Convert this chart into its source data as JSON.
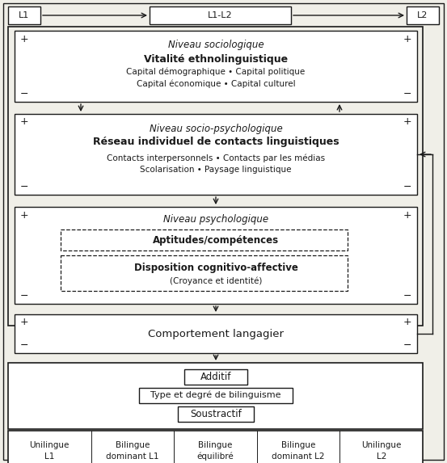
{
  "bg_color": "#f0efe8",
  "box_color": "#ffffff",
  "line_color": "#1a1a1a",
  "text_color": "#1a1a1a",
  "fig_width": 5.53,
  "fig_height": 5.73,
  "top_labels": {
    "l1": "L1",
    "l1l2": "L1-L2",
    "l2": "L2"
  },
  "box1": {
    "title_italic": "Niveau sociologique",
    "title_bold": "Vitalité ethnolinguistique",
    "subtitle": "Capital démographique • Capital politique\nCapital économique • Capital culturel"
  },
  "box2": {
    "title_italic": "Niveau socio-psychologique",
    "title_bold": "Réseau individuel de contacts linguistiques",
    "subtitle": "Contacts interpersonnels • Contacts par les médias\nScolarisation • Paysage linguistique"
  },
  "box3": {
    "title_italic": "Niveau psychologique",
    "dashed1": "Aptitudes/compétences",
    "dashed2_bold": "Disposition cognitivo-affective",
    "dashed2_sub": "(Croyance et identité)"
  },
  "box4": {
    "text": "Comportement langagier"
  },
  "box5": {
    "additif": "Additif",
    "middle": "Type et degré de bilinguisme",
    "soustractif": "Soustractif"
  },
  "bottom_labels": [
    "Unilingue\nL1",
    "Bilingue\ndominant L1",
    "Bilingue\néquilibré",
    "Bilingue\ndominant L2",
    "Unilingue\nL2"
  ]
}
